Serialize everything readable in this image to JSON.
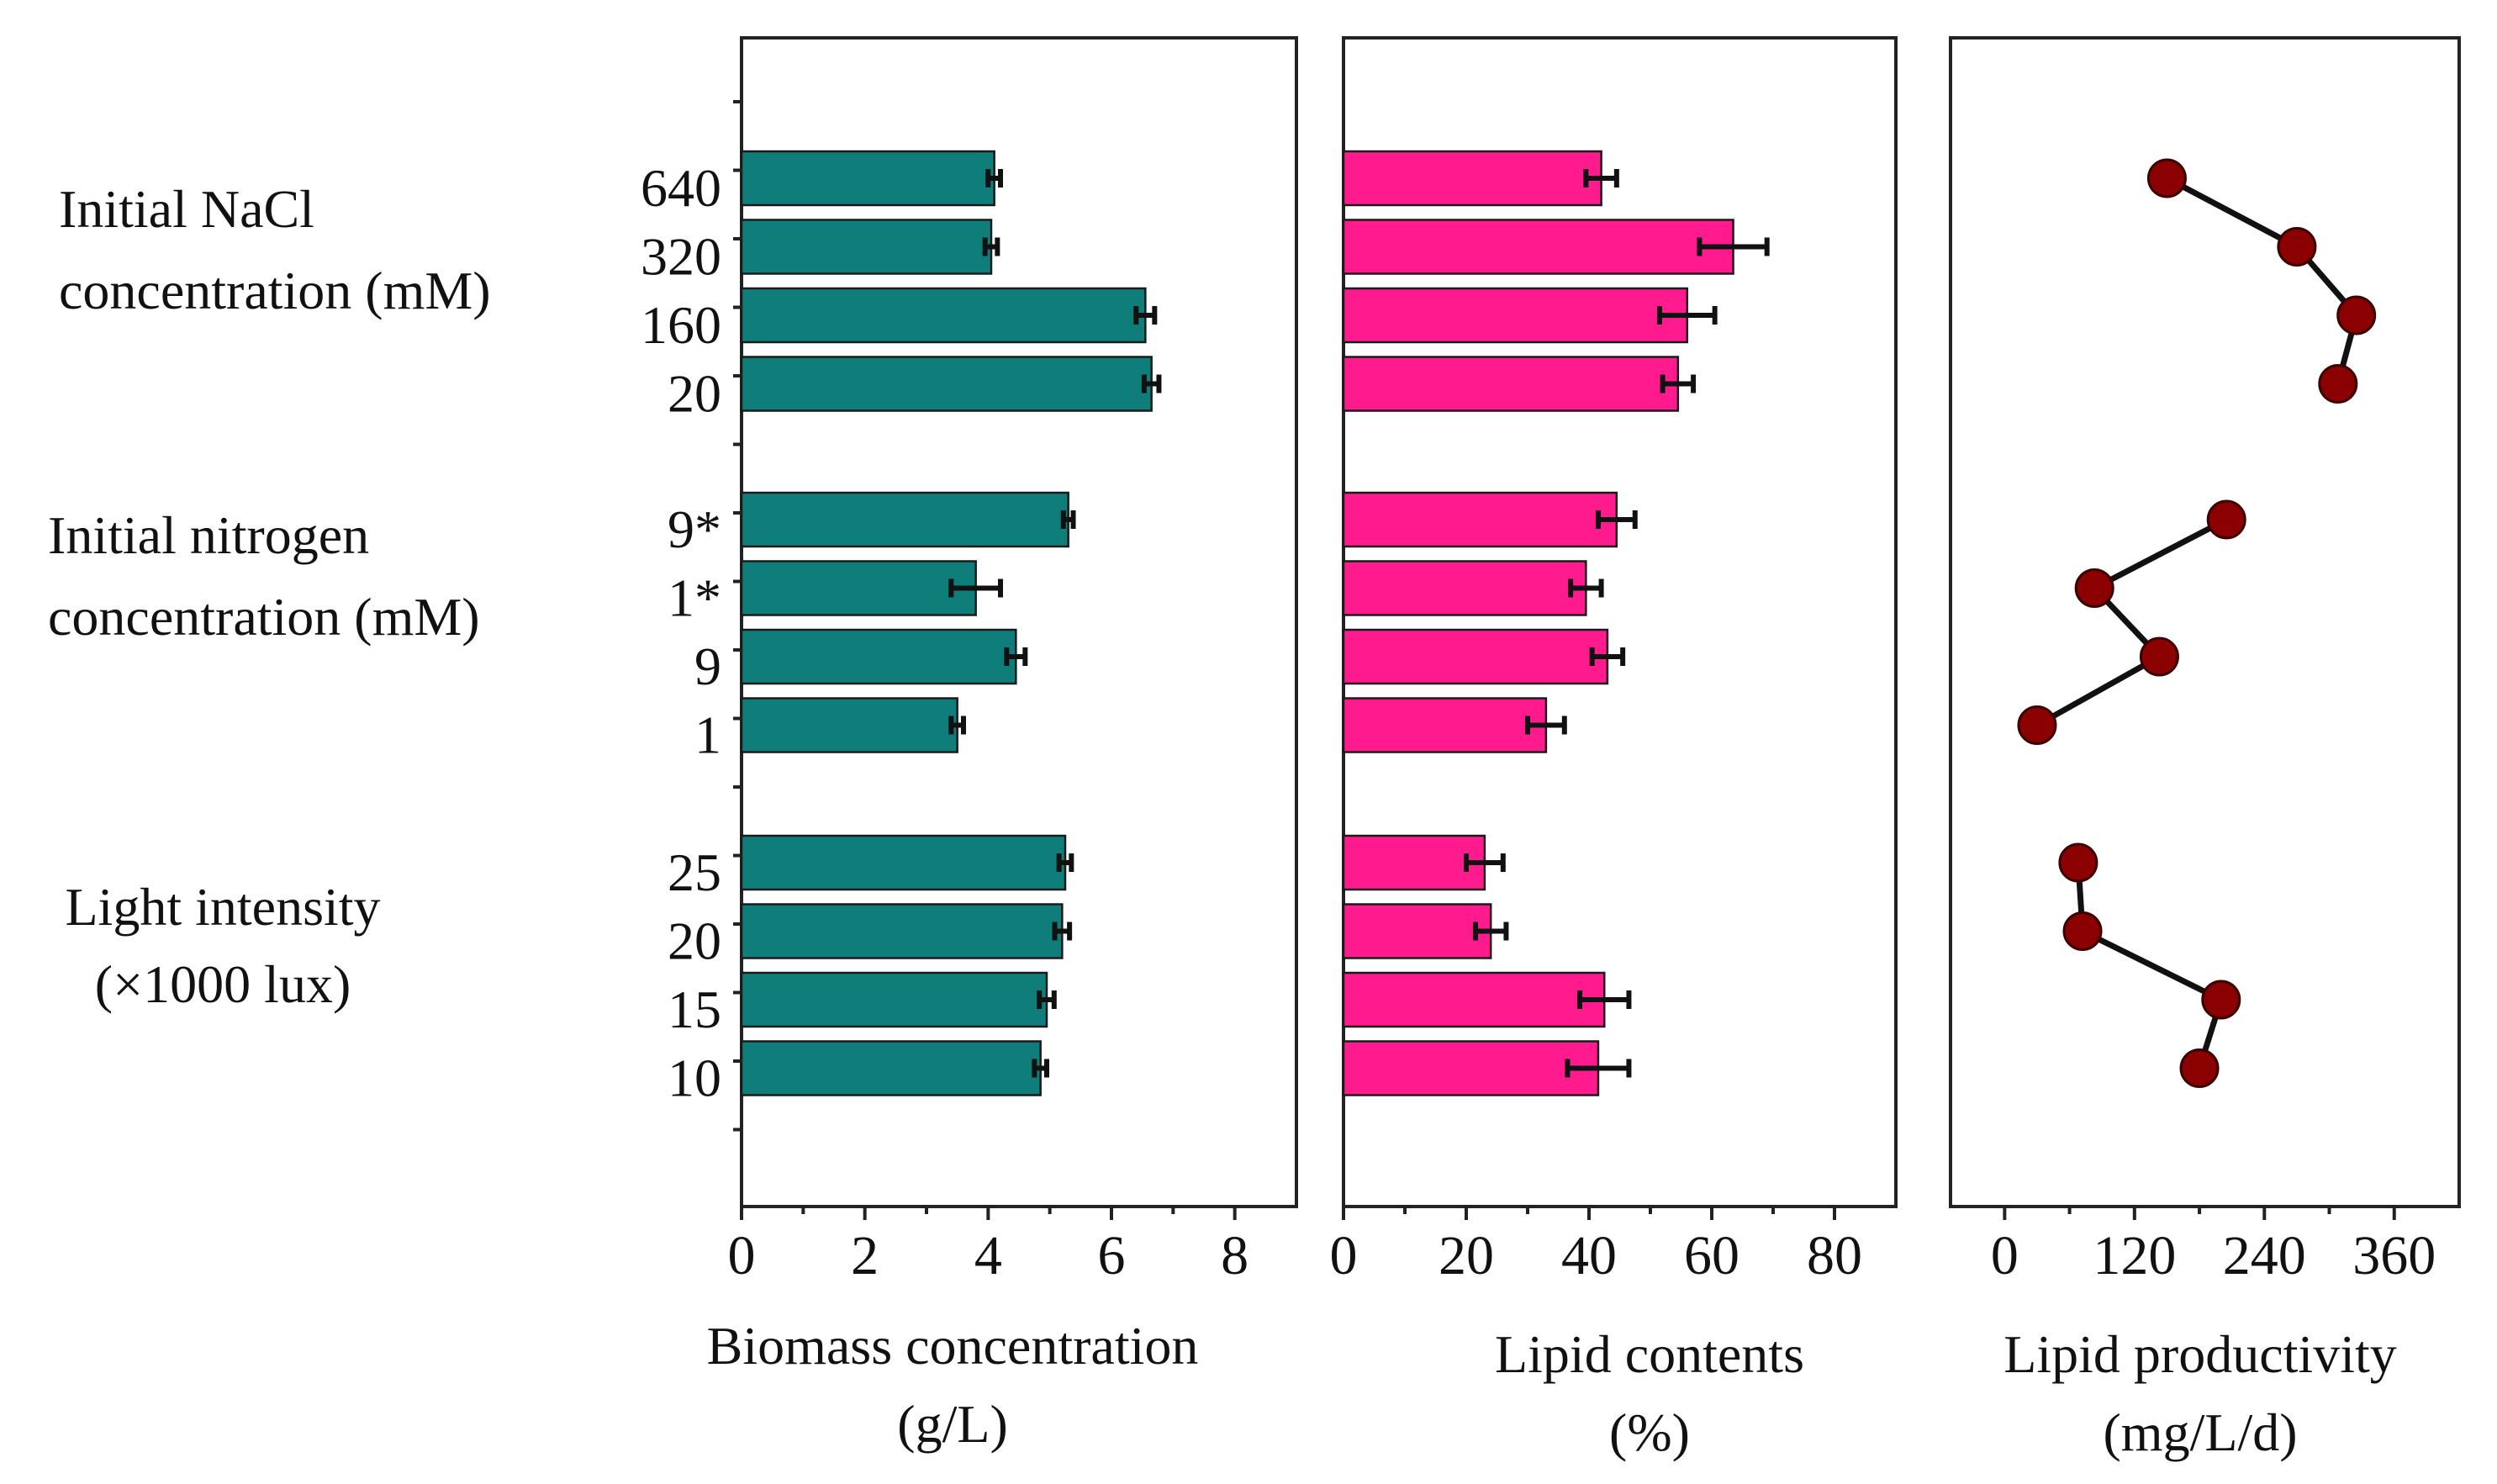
{
  "chart_data": {
    "type": "bar",
    "orientation": "horizontal",
    "categories": [
      "640",
      "320",
      "160",
      "20",
      "9*",
      "1*",
      "9",
      "1",
      "25",
      "20",
      "15",
      "10"
    ],
    "groups": [
      {
        "label_line1": "Initial NaCl",
        "label_line2": "concentration (mM)",
        "categories": [
          "640",
          "320",
          "160",
          "20"
        ]
      },
      {
        "label_line1": "Initial nitrogen",
        "label_line2": "concentration (mM)",
        "categories": [
          "9*",
          "1*",
          "9",
          "1"
        ]
      },
      {
        "label_line1": "Light intensity",
        "label_line2": "(×1000 lux)",
        "categories": [
          "25",
          "20",
          "15",
          "10"
        ]
      }
    ],
    "panels": [
      {
        "name": "biomass",
        "type": "bar",
        "xlabel_line1": "Biomass concentration",
        "xlabel_line2": "(g/L)",
        "xlim": [
          0,
          9
        ],
        "ticks": [
          0,
          2,
          4,
          6,
          8
        ],
        "color": "#0f7d79",
        "values": [
          4.1,
          4.05,
          6.55,
          6.65,
          5.3,
          3.8,
          4.45,
          3.5,
          5.25,
          5.2,
          4.95,
          4.85
        ],
        "errors": [
          0.1,
          0.1,
          0.15,
          0.12,
          0.08,
          0.4,
          0.15,
          0.1,
          0.1,
          0.12,
          0.12,
          0.1
        ]
      },
      {
        "name": "lipid-contents",
        "type": "bar",
        "xlabel_line1": "Lipid contents",
        "xlabel_line2": "(%)",
        "xlim": [
          0,
          90
        ],
        "ticks": [
          0,
          20,
          40,
          60,
          80
        ],
        "color": "#ff1b8d",
        "values": [
          42,
          63.5,
          56,
          54.5,
          44.5,
          39.5,
          43,
          33,
          23,
          24,
          42.5,
          41.5
        ],
        "errors": [
          2.5,
          5.5,
          4.5,
          2.5,
          3.0,
          2.5,
          2.5,
          3.0,
          3.0,
          2.5,
          4.0,
          5.0
        ]
      },
      {
        "name": "lipid-productivity",
        "type": "line",
        "xlabel_line1": "Lipid productivity",
        "xlabel_line2": "(mg/L/d)",
        "xlim": [
          -50,
          420
        ],
        "ticks": [
          0,
          120,
          240,
          360
        ],
        "color": "#8b0000",
        "values": [
          150,
          270,
          325,
          308,
          205,
          83,
          143,
          30,
          68,
          72,
          200,
          180
        ]
      }
    ]
  }
}
